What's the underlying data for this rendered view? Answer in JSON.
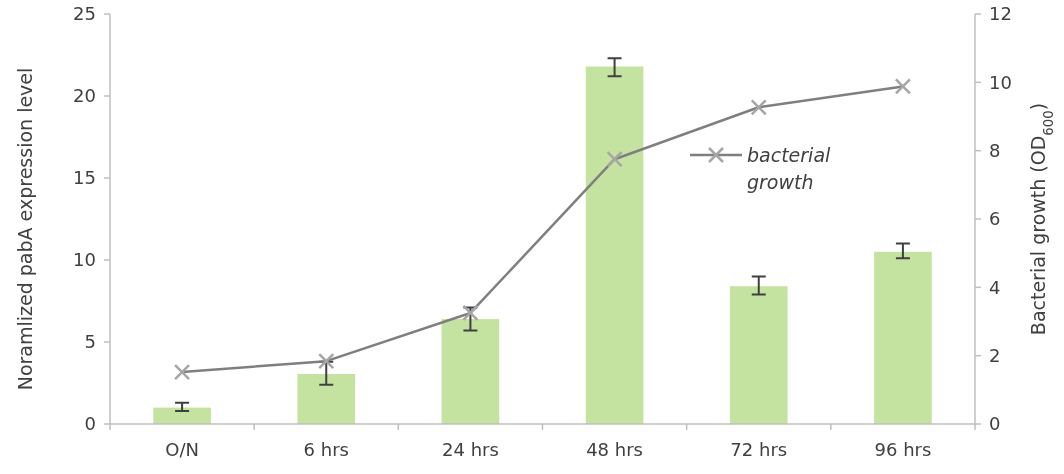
{
  "chart_data": {
    "type": "bar",
    "xlabel": null,
    "ylabel": "Noramlized pabA expression level",
    "y2label": "Bacterial growth (OD$_{600}$)",
    "categories": [
      "O/N",
      "6 hrs",
      "24 hrs",
      "48 hrs",
      "72 hrs",
      "96 hrs"
    ],
    "series": [
      {
        "color": "#c5e3a0",
        "values": [
          1.0,
          3.05,
          6.4,
          21.8,
          8.4,
          10.5
        ],
        "errors": [
          [
            0.8,
            1.3
          ],
          [
            2.4,
            3.8
          ],
          [
            5.7,
            7.1
          ],
          [
            21.2,
            22.3
          ],
          [
            7.9,
            9.0
          ],
          [
            10.1,
            11.0
          ]
        ]
      },
      {
        "type": "line",
        "name": "bacterial growth",
        "color": "#7f7f7f",
        "axis": "y2",
        "marker": "cross",
        "values": [
          1.52,
          1.84,
          3.25,
          7.75,
          9.27,
          9.88
        ]
      }
    ],
    "ylim": [
      0,
      25
    ],
    "yticks": [
      0,
      5,
      10,
      15,
      20,
      25
    ],
    "y2lim": [
      0,
      12
    ],
    "y2ticks": [
      0,
      2,
      4,
      6,
      8,
      10,
      12
    ],
    "grid": false,
    "legend": "top right"
  }
}
